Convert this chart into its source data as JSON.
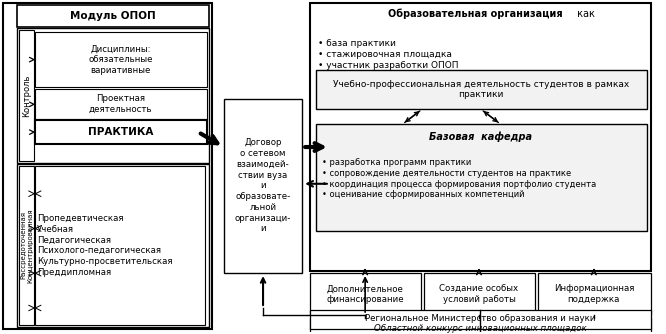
{
  "bg_color": "#ffffff",
  "boxes": {
    "modul_opop": "Модуль ОПОП",
    "discipliny": "Дисциплины:\nобязательные\nвариативные",
    "proektnaya": "Проектная\nдеятельность",
    "praktika": "ПРАКТИКА",
    "kontrol": "Контроль",
    "raspredelennaya": "Рассредоточенная\nКонцентрированная",
    "vidy": "Пропедевтическая\nУчебная\nПедагогическая\nПсихолого-педагогическая\nКультурно-просветительская\nПреддипломная",
    "dogovor": "Договор\nо сетевом\nвзаимодей-\nствии вуза\nи\nобразовате-\nльной\nорганизаци-\nи",
    "obr_org_bold": "Образовательная организация",
    "obr_org_normal": " как",
    "obr_org_bullets": "• база практики\n• стажировочная площадка\n• участник разработки ОПОП",
    "uchebno": "Учебно-профессиональная деятельность студентов в рамках\nпрактики",
    "bazovaya": "Базовая  кафедра",
    "bazovaya_bullets": "• разработка программ практики\n• сопровождение деятельности студентов на практике\n• координация процесса формирования портфолио студента\n• оценивание сформированных компетенций",
    "dop_fin": "Дополнительное\nфинансирование",
    "sozdanie": "Создание особых\nусловий работы",
    "inform": "Информационная\nподдержка",
    "oblastnoy": "Областной конкурс инновационных площадок",
    "regionalnoye": "Региональное Министерство образования и науки"
  }
}
